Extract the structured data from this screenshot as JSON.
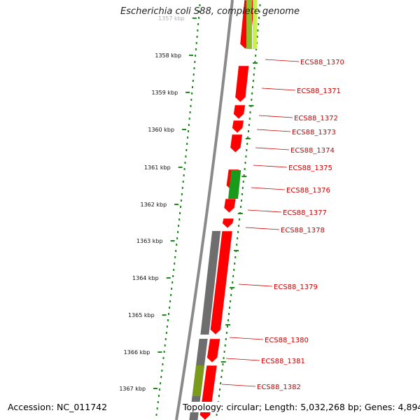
{
  "header": {
    "title": "Escherichia coli S88, complete genome"
  },
  "footer": {
    "accession": "Accession: NC_011742",
    "summary": "Topology: circular; Length: 5,032,268 bp; Genes: 4,894"
  },
  "colors": {
    "backbone": "#8a8a8a",
    "cds_forward": "#ff0000",
    "cds_other": "#6e6e6e",
    "gene_green": "#1a9a1a",
    "gene_olive": "#7a9a1a",
    "gene_lime": "#c8f050",
    "scale_dots": "#1a8a1a",
    "label_text": "#cc0000"
  },
  "scale_labels": [
    "1357 kbp",
    "1358 kbp",
    "1359 kbp",
    "1360 kbp",
    "1361 kbp",
    "1362 kbp",
    "1363 kbp",
    "1364 kbp",
    "1365 kbp",
    "1366 kbp",
    "1367 kbp"
  ],
  "gene_labels": [
    "ECS88_1370",
    "ECS88_1371",
    "ECS88_1372",
    "ECS88_1373",
    "ECS88_1374",
    "ECS88_1375",
    "ECS88_1376",
    "ECS88_1377",
    "ECS88_1378",
    "ECS88_1379",
    "ECS88_1380",
    "ECS88_1381",
    "ECS88_1382"
  ]
}
